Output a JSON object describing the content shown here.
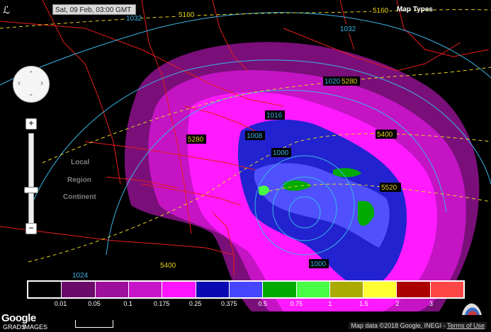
{
  "timestamp": "Sat, 09 Feb, 03:00 GMT",
  "map_types_label": "Map Types",
  "logo_mark": "ℒ",
  "pan_arrows": {
    "up": "⌃",
    "down": "⌄",
    "left": "‹",
    "right": "›"
  },
  "zoom": {
    "in": "+",
    "out": "−"
  },
  "zoom_levels": [
    "Local",
    "Region",
    "Continent"
  ],
  "contours": [
    "5160",
    "5160",
    "1032",
    "1032",
    "1020",
    "5280",
    "1016",
    "5280",
    "1008",
    "5400",
    "1000",
    "5520",
    "5400",
    "1024",
    "1000"
  ],
  "legend": {
    "colors": [
      "#000000",
      "#6b0a6b",
      "#9c109c",
      "#c814c8",
      "#ff14ff",
      "#0a0ab4",
      "#4646ff",
      "#00aa00",
      "#46ff46",
      "#aaaa00",
      "#ffff32",
      "#aa0000",
      "#ff4646"
    ],
    "ticks": [
      "0.01",
      "0.05",
      "0.1",
      "0.175",
      "0.25",
      "0.375",
      "0.5",
      "0.75",
      "1",
      "1.5",
      "2",
      "3"
    ]
  },
  "google_logo": "Google",
  "credit": "GRADS",
  "map_data": "Map data ©2018 Google, INEGI",
  "terms": "Terms of Use",
  "scale_label": "IMAGES",
  "brand_icon": "weather-site-logo-icon"
}
